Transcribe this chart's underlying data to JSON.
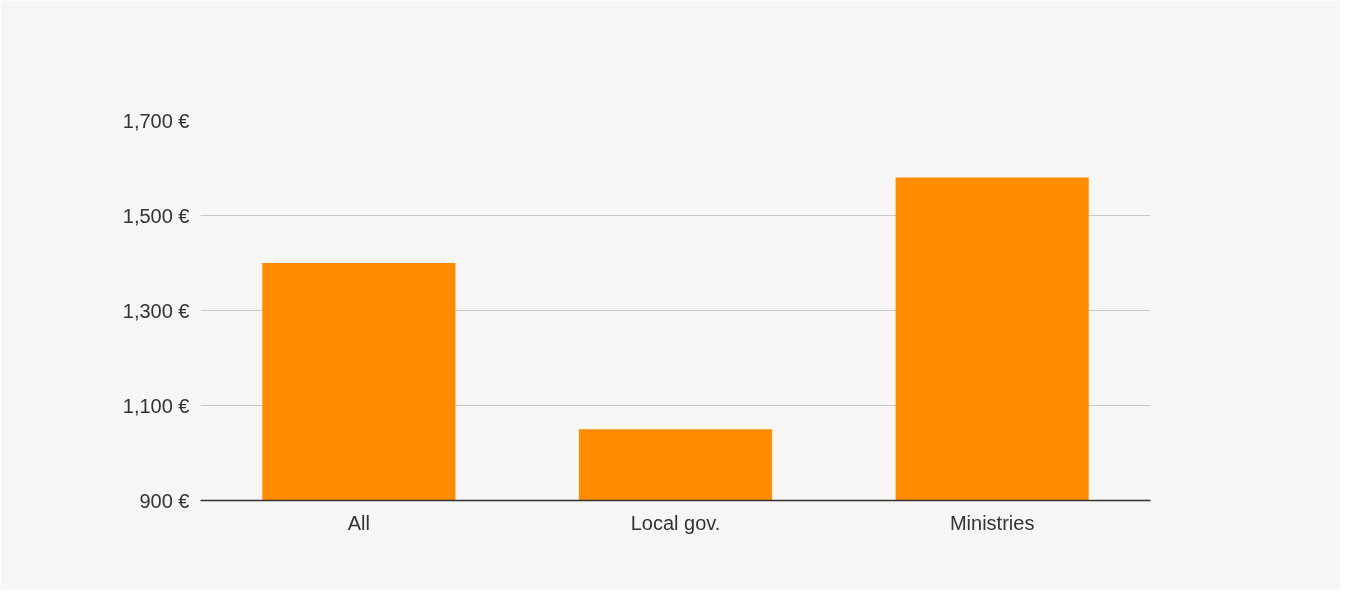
{
  "chart_data": {
    "type": "bar",
    "categories": [
      "All",
      "Local gov.",
      "Ministries"
    ],
    "values": [
      1400,
      1050,
      1580
    ],
    "color": "#ff8c00",
    "ylim": [
      900,
      1700
    ],
    "yticks": [
      {
        "value": 900,
        "label": "900 €"
      },
      {
        "value": 1100,
        "label": "1,100 €"
      },
      {
        "value": 1300,
        "label": "1,300 €"
      },
      {
        "value": 1500,
        "label": "1,500 €"
      },
      {
        "value": 1700,
        "label": "1,700 €"
      }
    ],
    "grid": "y"
  }
}
